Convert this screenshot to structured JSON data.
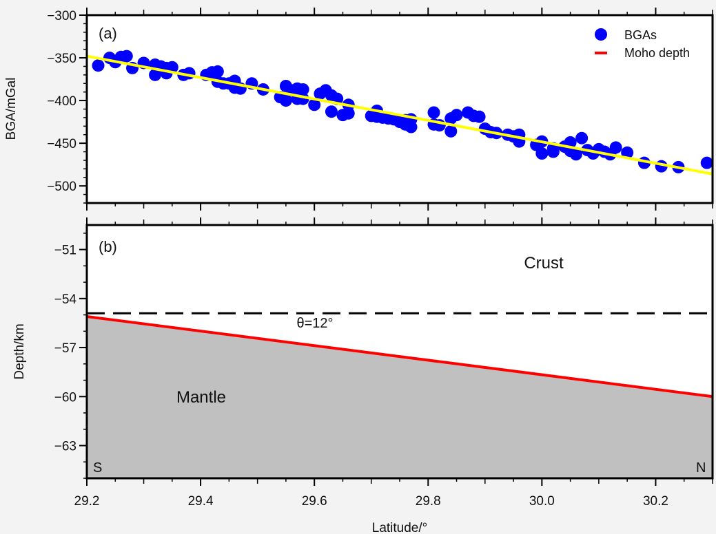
{
  "chart_data": [
    {
      "panel_label": "(a)",
      "type": "scatter",
      "xlim": [
        29.2,
        30.3
      ],
      "ylim": [
        -520,
        -300
      ],
      "yticks": [
        -300,
        -350,
        -400,
        -450,
        -500
      ],
      "xticks": [
        29.2,
        29.4,
        29.6,
        29.8,
        30.0,
        30.2
      ],
      "xlabel": "",
      "ylabel": "BGA/mGal",
      "legend_position": "top-right",
      "series": [
        {
          "name": "BGAs",
          "kind": "points",
          "color": "#0000ff",
          "x": [
            29.22,
            29.24,
            29.25,
            29.26,
            29.27,
            29.28,
            29.3,
            29.32,
            29.32,
            29.33,
            29.34,
            29.34,
            29.35,
            29.37,
            29.38,
            29.41,
            29.42,
            29.43,
            29.43,
            29.44,
            29.45,
            29.46,
            29.46,
            29.47,
            29.49,
            29.51,
            29.54,
            29.55,
            29.55,
            29.56,
            29.57,
            29.57,
            29.58,
            29.58,
            29.6,
            29.61,
            29.62,
            29.63,
            29.63,
            29.64,
            29.65,
            29.66,
            29.66,
            29.7,
            29.71,
            29.71,
            29.72,
            29.73,
            29.74,
            29.75,
            29.76,
            29.76,
            29.77,
            29.77,
            29.81,
            29.81,
            29.82,
            29.84,
            29.84,
            29.85,
            29.87,
            29.88,
            29.89,
            29.9,
            29.91,
            29.92,
            29.94,
            29.95,
            29.96,
            29.96,
            29.99,
            30.0,
            30.0,
            30.02,
            30.02,
            30.04,
            30.05,
            30.05,
            30.06,
            30.07,
            30.08,
            30.09,
            30.1,
            30.11,
            30.12,
            30.13,
            30.15,
            30.18,
            30.21,
            30.24,
            30.29
          ],
          "y": [
            -359,
            -350,
            -355,
            -349,
            -348,
            -362,
            -356,
            -358,
            -370,
            -360,
            -368,
            -362,
            -361,
            -370,
            -368,
            -370,
            -367,
            -366,
            -378,
            -380,
            -380,
            -377,
            -385,
            -386,
            -380,
            -387,
            -396,
            -383,
            -400,
            -388,
            -386,
            -398,
            -387,
            -398,
            -405,
            -392,
            -388,
            -394,
            -413,
            -398,
            -417,
            -405,
            -415,
            -418,
            -412,
            -419,
            -420,
            -421,
            -422,
            -425,
            -428,
            -423,
            -431,
            -422,
            -414,
            -428,
            -429,
            -436,
            -421,
            -417,
            -414,
            -418,
            -419,
            -433,
            -437,
            -438,
            -440,
            -442,
            -440,
            -448,
            -452,
            -448,
            -462,
            -456,
            -460,
            -454,
            -449,
            -459,
            -463,
            -444,
            -458,
            -462,
            -457,
            -460,
            -463,
            -455,
            -461,
            -473,
            -477,
            -478,
            -473
          ]
        },
        {
          "name": "",
          "kind": "fit-line",
          "color": "#ffff00",
          "x": [
            29.2,
            30.3
          ],
          "y": [
            -348,
            -486
          ]
        }
      ],
      "legend": [
        {
          "label": "BGAs",
          "symbol": "circle",
          "color": "#0000ff"
        },
        {
          "label": "Moho depth",
          "symbol": "line",
          "color": "#ff0000"
        }
      ]
    },
    {
      "panel_label": "(b)",
      "type": "area",
      "xlim": [
        29.2,
        30.3
      ],
      "ylim": [
        -65,
        -49.5
      ],
      "yticks": [
        -51,
        -54,
        -57,
        -60,
        -63
      ],
      "xticks": [
        29.2,
        29.4,
        29.6,
        29.8,
        30.0,
        30.2
      ],
      "xticklabels": [
        "29.2",
        "29.4",
        "29.6",
        "29.8",
        "30.0",
        "30.2"
      ],
      "xlabel": "Latitude/°",
      "ylabel": "Depth/km",
      "series": [
        {
          "name": "Moho depth",
          "kind": "line",
          "color": "#ff0000",
          "x": [
            29.2,
            30.3
          ],
          "y": [
            -55.1,
            -60.0
          ]
        },
        {
          "name": "",
          "kind": "reference-dashed",
          "color": "#000000",
          "x": [
            29.2,
            30.3
          ],
          "y": [
            -54.9,
            -54.9
          ]
        }
      ],
      "fill_below_color": "#c0c0c0",
      "annotations": {
        "crust": "Crust",
        "mantle": "Mantle",
        "theta": "θ=12°",
        "south": "S",
        "north": "N"
      }
    }
  ]
}
